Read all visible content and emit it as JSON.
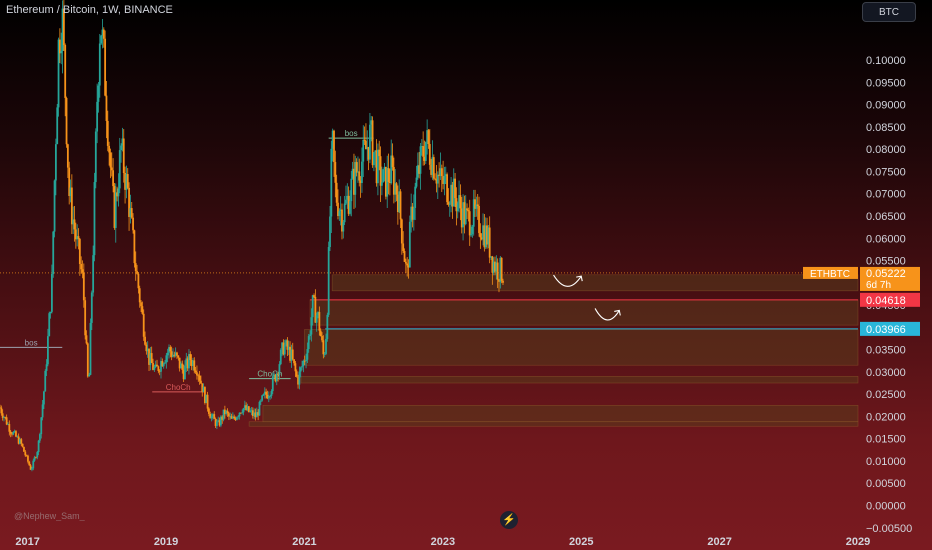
{
  "header": {
    "title": "Ethereum / Bitcoin, 1W, BINANCE",
    "currency_button": "BTC"
  },
  "footer": {
    "watermark": "@Nephew_Sam_",
    "bolt_icon": "lightning-bolt-icon"
  },
  "colors": {
    "up": "#26a69a",
    "down": "#f7931a",
    "zone": "#5a3a1c",
    "zone_edge": "#a06a30",
    "support_line": "#29b6d9",
    "resistance_line": "#f23645",
    "price_line": "#f7931a",
    "label_text": "#d1d4dc"
  },
  "chart_data": {
    "type": "candlestick",
    "x_range": [
      2016.6,
      2029.0
    ],
    "ylim": [
      -0.0055,
      0.1135
    ],
    "y_ticks": [
      "0.10000",
      "0.09500",
      "0.09000",
      "0.08500",
      "0.08000",
      "0.07500",
      "0.07000",
      "0.06500",
      "0.06000",
      "0.05500",
      "0.05000",
      "0.04500",
      "0.04000",
      "0.03500",
      "0.03000",
      "0.02500",
      "0.02000",
      "0.01500",
      "0.01000",
      "0.00500",
      "0.00000",
      "−0.00500"
    ],
    "x_ticks": [
      "2017",
      "2019",
      "2021",
      "2023",
      "2025",
      "2027",
      "2029"
    ],
    "price_path": [
      [
        2016.6,
        0.022
      ],
      [
        2016.75,
        0.017
      ],
      [
        2016.9,
        0.014
      ],
      [
        2017.0,
        0.01
      ],
      [
        2017.05,
        0.008
      ],
      [
        2017.15,
        0.013
      ],
      [
        2017.25,
        0.028
      ],
      [
        2017.35,
        0.05
      ],
      [
        2017.4,
        0.08
      ],
      [
        2017.45,
        0.105
      ],
      [
        2017.5,
        0.11
      ],
      [
        2017.55,
        0.09
      ],
      [
        2017.6,
        0.07
      ],
      [
        2017.7,
        0.06
      ],
      [
        2017.8,
        0.05
      ],
      [
        2017.88,
        0.025
      ],
      [
        2017.95,
        0.06
      ],
      [
        2018.0,
        0.09
      ],
      [
        2018.05,
        0.11
      ],
      [
        2018.1,
        0.1
      ],
      [
        2018.2,
        0.075
      ],
      [
        2018.25,
        0.065
      ],
      [
        2018.35,
        0.08
      ],
      [
        2018.45,
        0.07
      ],
      [
        2018.55,
        0.055
      ],
      [
        2018.65,
        0.043
      ],
      [
        2018.75,
        0.033
      ],
      [
        2018.85,
        0.03
      ],
      [
        2018.95,
        0.033
      ],
      [
        2019.05,
        0.035
      ],
      [
        2019.15,
        0.033
      ],
      [
        2019.25,
        0.03
      ],
      [
        2019.35,
        0.033
      ],
      [
        2019.45,
        0.031
      ],
      [
        2019.55,
        0.025
      ],
      [
        2019.65,
        0.02
      ],
      [
        2019.75,
        0.018
      ],
      [
        2019.85,
        0.021
      ],
      [
        2019.95,
        0.019
      ],
      [
        2020.1,
        0.022
      ],
      [
        2020.2,
        0.021
      ],
      [
        2020.3,
        0.02
      ],
      [
        2020.4,
        0.024
      ],
      [
        2020.5,
        0.026
      ],
      [
        2020.6,
        0.03
      ],
      [
        2020.7,
        0.036
      ],
      [
        2020.8,
        0.034
      ],
      [
        2020.9,
        0.028
      ],
      [
        2021.0,
        0.033
      ],
      [
        2021.05,
        0.036
      ],
      [
        2021.12,
        0.045
      ],
      [
        2021.2,
        0.042
      ],
      [
        2021.28,
        0.033
      ],
      [
        2021.32,
        0.04
      ],
      [
        2021.36,
        0.06
      ],
      [
        2021.4,
        0.082
      ],
      [
        2021.45,
        0.07
      ],
      [
        2021.55,
        0.065
      ],
      [
        2021.65,
        0.07
      ],
      [
        2021.75,
        0.075
      ],
      [
        2021.85,
        0.078
      ],
      [
        2021.95,
        0.083
      ],
      [
        2022.05,
        0.076
      ],
      [
        2022.15,
        0.072
      ],
      [
        2022.25,
        0.075
      ],
      [
        2022.35,
        0.07
      ],
      [
        2022.42,
        0.06
      ],
      [
        2022.48,
        0.051
      ],
      [
        2022.55,
        0.066
      ],
      [
        2022.65,
        0.075
      ],
      [
        2022.75,
        0.082
      ],
      [
        2022.85,
        0.078
      ],
      [
        2022.95,
        0.073
      ],
      [
        2023.05,
        0.072
      ],
      [
        2023.15,
        0.07
      ],
      [
        2023.25,
        0.067
      ],
      [
        2023.35,
        0.064
      ],
      [
        2023.45,
        0.065
      ],
      [
        2023.55,
        0.063
      ],
      [
        2023.65,
        0.06
      ],
      [
        2023.72,
        0.055
      ],
      [
        2023.8,
        0.053
      ],
      [
        2023.87,
        0.0522
      ]
    ],
    "current_price": {
      "symbol": "ETHBTC",
      "value": "0.05222",
      "countdown": "6d 7h",
      "y": 0.05222
    },
    "price_lines": [
      {
        "label": "0.04618",
        "y": 0.04618,
        "color": "#f23645",
        "x_start": 2021.08
      },
      {
        "label": "0.03966",
        "y": 0.03966,
        "color": "#29b6d9",
        "x_start": 2021.3
      }
    ],
    "zones": [
      {
        "x_start": 2021.4,
        "y_top": 0.0518,
        "y_bottom": 0.0482
      },
      {
        "x_start": 2021.08,
        "y_top": 0.0462,
        "y_bottom": 0.0405
      },
      {
        "x_start": 2021.0,
        "y_top": 0.0395,
        "y_bottom": 0.0315
      },
      {
        "x_start": 2020.95,
        "y_top": 0.029,
        "y_bottom": 0.0275
      },
      {
        "x_start": 2020.4,
        "y_top": 0.0225,
        "y_bottom": 0.0188
      },
      {
        "x_start": 2020.2,
        "y_top": 0.0188,
        "y_bottom": 0.0178
      }
    ],
    "structure_lines": [
      {
        "text": "bos",
        "color": "#9ca3af",
        "x1": 2016.6,
        "x2": 2017.5,
        "y": 0.0355
      },
      {
        "text": "ChoCh",
        "color": "#d85a5a",
        "x1": 2018.8,
        "x2": 2019.55,
        "y": 0.0255
      },
      {
        "text": "ChoCh",
        "color": "#7fbf9f",
        "x1": 2020.2,
        "x2": 2020.8,
        "y": 0.0285
      },
      {
        "text": "bos",
        "color": "#7fbf9f",
        "x1": 2021.35,
        "x2": 2022.0,
        "y": 0.0825
      }
    ],
    "arrows": [
      {
        "x1": 2024.6,
        "y1": 0.0495,
        "x2": 2025.0,
        "y2": 0.0515
      },
      {
        "x1": 2025.2,
        "y1": 0.042,
        "x2": 2025.55,
        "y2": 0.0438
      }
    ],
    "grid": false
  }
}
